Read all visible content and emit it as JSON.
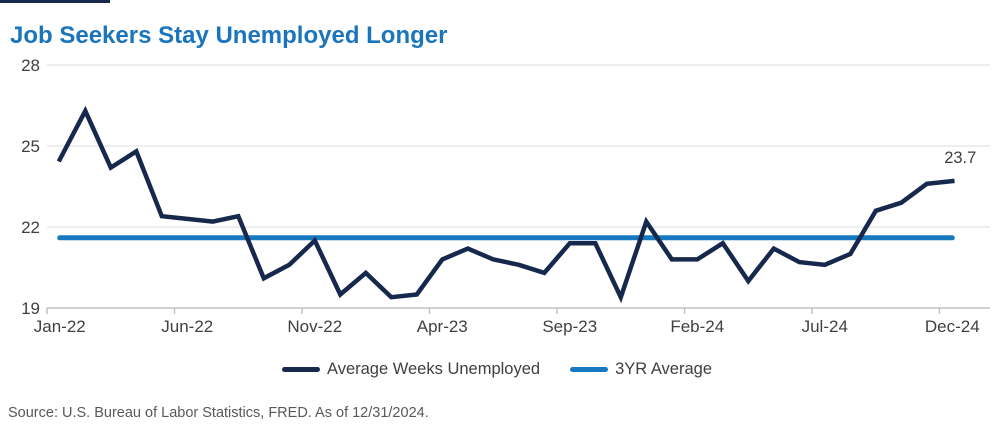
{
  "header": {
    "title": "Job Seekers Stay Unemployed Longer"
  },
  "chart_data": {
    "type": "line",
    "title": "Job Seekers Stay Unemployed Longer",
    "x": [
      "Jan-22",
      "Feb-22",
      "Mar-22",
      "Apr-22",
      "May-22",
      "Jun-22",
      "Jul-22",
      "Aug-22",
      "Sep-22",
      "Oct-22",
      "Nov-22",
      "Dec-22",
      "Jan-23",
      "Feb-23",
      "Mar-23",
      "Apr-23",
      "May-23",
      "Jun-23",
      "Jul-23",
      "Aug-23",
      "Sep-23",
      "Oct-23",
      "Nov-23",
      "Dec-23",
      "Jan-24",
      "Feb-24",
      "Mar-24",
      "Apr-24",
      "May-24",
      "Jun-24",
      "Jul-24",
      "Aug-24",
      "Sep-24",
      "Oct-24",
      "Nov-24",
      "Dec-24"
    ],
    "series": [
      {
        "name": "Average Weeks Unemployed",
        "color": "#16294d",
        "values": [
          24.5,
          26.3,
          24.2,
          24.8,
          22.4,
          22.3,
          22.2,
          22.4,
          20.1,
          20.6,
          21.5,
          19.5,
          20.3,
          19.4,
          19.5,
          20.8,
          21.2,
          20.8,
          20.6,
          20.3,
          21.4,
          21.4,
          19.4,
          22.2,
          20.8,
          20.8,
          21.4,
          20.0,
          21.2,
          20.7,
          20.6,
          21.0,
          22.6,
          22.9,
          23.6,
          23.7
        ]
      },
      {
        "name": "3YR Average",
        "color": "#1779bf",
        "constant_value": 21.6
      }
    ],
    "end_label": "23.7",
    "ylim": [
      19,
      28
    ],
    "yticks": [
      19,
      22,
      25,
      28
    ],
    "xtick_labels": [
      "Jan-22",
      "Jun-22",
      "Nov-22",
      "Apr-23",
      "Sep-23",
      "Feb-24",
      "Jul-24",
      "Dec-24"
    ],
    "xtick_every": 5,
    "grid": "horizontal",
    "legend_position": "bottom"
  },
  "legend": {
    "items": [
      {
        "label": "Average Weeks Unemployed",
        "color": "#16294d"
      },
      {
        "label": "3YR Average",
        "color": "#1779bf"
      }
    ]
  },
  "footer": {
    "source": "Source: U.S. Bureau of Labor Statistics, FRED. As of 12/31/2024."
  },
  "colors": {
    "title": "#1b75bc",
    "main_line": "#16294d",
    "average_line": "#1779bf",
    "gridline": "#dcdcdc",
    "axis": "#c0c0c0",
    "tick_text": "#404040",
    "source_text": "#595959",
    "background": "#ffffff"
  }
}
